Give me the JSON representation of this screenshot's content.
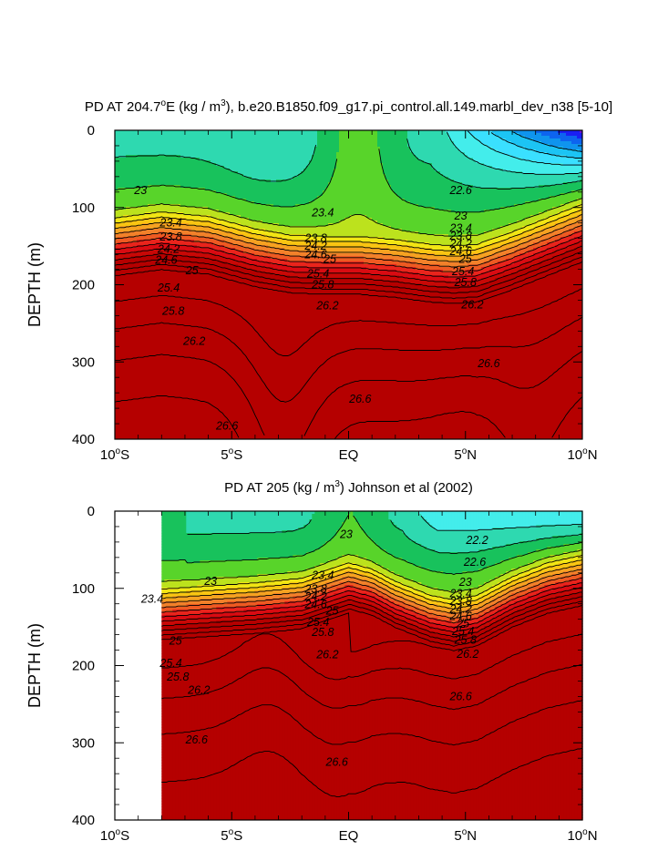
{
  "chart_data": [
    {
      "type": "contour",
      "title": "PD AT 204.7°E (kg / m³), b.e20.B1850.f09_g17.pi_control.all.149.marbl_dev_n38 [5-10]",
      "title_parts": {
        "prefix": "PD AT 204.7",
        "degree": "o",
        "mid": "E (kg / m",
        "power": "3",
        "suffix": "), b.e20.B1850.f09_g17.pi_control.all.149.marbl_dev_n38 [5-10]"
      },
      "xlabel": "",
      "ylabel": "DEPTH (m)",
      "xlim": [
        -10,
        10
      ],
      "ylim": [
        400,
        0
      ],
      "y_reversed": true,
      "x_ticks": [
        {
          "value": -10,
          "num": "10",
          "hemi": "S"
        },
        {
          "value": -5,
          "num": "5",
          "hemi": "S"
        },
        {
          "value": 0,
          "num": "EQ",
          "hemi": ""
        },
        {
          "value": 5,
          "num": "5",
          "hemi": "N"
        },
        {
          "value": 10,
          "num": "10",
          "hemi": "N"
        }
      ],
      "y_ticks": [
        "0",
        "100",
        "200",
        "300",
        "400"
      ],
      "data_xmin": -10,
      "contour_levels": [
        22.2,
        22.6,
        23.0,
        23.4,
        23.8,
        24.2,
        24.6,
        25.0,
        25.4,
        25.8,
        26.2,
        26.6
      ],
      "contour_labels": [
        {
          "x": -8.9,
          "y": 78,
          "text": "23"
        },
        {
          "x": -7.6,
          "y": 120,
          "text": "23.4"
        },
        {
          "x": -7.6,
          "y": 138,
          "text": "23.8"
        },
        {
          "x": -7.7,
          "y": 154,
          "text": "24.2"
        },
        {
          "x": -7.8,
          "y": 168,
          "text": "24.6"
        },
        {
          "x": -6.7,
          "y": 182,
          "text": "25"
        },
        {
          "x": -7.7,
          "y": 204,
          "text": "25.4"
        },
        {
          "x": -7.5,
          "y": 234,
          "text": "25.8"
        },
        {
          "x": -6.6,
          "y": 273,
          "text": "26.2"
        },
        {
          "x": -5.2,
          "y": 383,
          "text": "26.6"
        },
        {
          "x": -1.1,
          "y": 107,
          "text": "23.4"
        },
        {
          "x": -1.4,
          "y": 140,
          "text": "23.8"
        },
        {
          "x": -1.4,
          "y": 150,
          "text": "24.2"
        },
        {
          "x": -1.4,
          "y": 161,
          "text": "24.6"
        },
        {
          "x": -0.8,
          "y": 167,
          "text": "25"
        },
        {
          "x": -1.3,
          "y": 186,
          "text": "25.4"
        },
        {
          "x": -1.1,
          "y": 200,
          "text": "25.8"
        },
        {
          "x": -0.9,
          "y": 227,
          "text": "26.2"
        },
        {
          "x": 0.5,
          "y": 348,
          "text": "26.6"
        },
        {
          "x": 4.8,
          "y": 78,
          "text": "22.6"
        },
        {
          "x": 4.8,
          "y": 111,
          "text": "23"
        },
        {
          "x": 4.8,
          "y": 127,
          "text": "23.4"
        },
        {
          "x": 4.8,
          "y": 137,
          "text": "23.8"
        },
        {
          "x": 4.8,
          "y": 147,
          "text": "24.2"
        },
        {
          "x": 4.8,
          "y": 157,
          "text": "24.6"
        },
        {
          "x": 5.0,
          "y": 167,
          "text": "25"
        },
        {
          "x": 4.9,
          "y": 183,
          "text": "25.4"
        },
        {
          "x": 5.0,
          "y": 197,
          "text": "25.8"
        },
        {
          "x": 5.3,
          "y": 226,
          "text": "26.2"
        },
        {
          "x": 6.0,
          "y": 302,
          "text": "26.6"
        }
      ]
    },
    {
      "type": "contour",
      "title": "PD AT 205 (kg / m³) Johnson et al (2002)",
      "title_parts": {
        "prefix": "PD AT 205 (kg / m",
        "degree": "",
        "mid": "",
        "power": "3",
        "suffix": ") Johnson et al (2002)"
      },
      "xlabel": "",
      "ylabel": "DEPTH (m)",
      "xlim": [
        -10,
        10
      ],
      "ylim": [
        400,
        0
      ],
      "y_reversed": true,
      "x_ticks": [
        {
          "value": -10,
          "num": "10",
          "hemi": "S"
        },
        {
          "value": -5,
          "num": "5",
          "hemi": "S"
        },
        {
          "value": 0,
          "num": "EQ",
          "hemi": ""
        },
        {
          "value": 5,
          "num": "5",
          "hemi": "N"
        },
        {
          "value": 10,
          "num": "10",
          "hemi": "N"
        }
      ],
      "y_ticks": [
        "0",
        "100",
        "200",
        "300",
        "400"
      ],
      "data_xmin": -8,
      "contour_levels": [
        22.2,
        22.6,
        23.0,
        23.4,
        23.8,
        24.2,
        24.6,
        25.0,
        25.4,
        25.8,
        26.2,
        26.6
      ],
      "contour_labels": [
        {
          "x": 5.5,
          "y": 38,
          "text": "22.2"
        },
        {
          "x": 5.4,
          "y": 66,
          "text": "22.6"
        },
        {
          "x": 5.0,
          "y": 92,
          "text": "23"
        },
        {
          "x": 4.8,
          "y": 107,
          "text": "23.4"
        },
        {
          "x": 4.8,
          "y": 117,
          "text": "23.8"
        },
        {
          "x": 4.8,
          "y": 127,
          "text": "24.2"
        },
        {
          "x": 4.8,
          "y": 136,
          "text": "24.6"
        },
        {
          "x": 4.9,
          "y": 146,
          "text": "25"
        },
        {
          "x": 4.9,
          "y": 156,
          "text": "25.4"
        },
        {
          "x": 5.0,
          "y": 167,
          "text": "25.8"
        },
        {
          "x": 5.1,
          "y": 185,
          "text": "26.2"
        },
        {
          "x": 4.8,
          "y": 240,
          "text": "26.6"
        },
        {
          "x": -5.9,
          "y": 91,
          "text": "23"
        },
        {
          "x": -8.4,
          "y": 114,
          "text": "23.4"
        },
        {
          "x": -7.4,
          "y": 168,
          "text": "25"
        },
        {
          "x": -7.6,
          "y": 197,
          "text": "25.4"
        },
        {
          "x": -7.3,
          "y": 215,
          "text": "25.8"
        },
        {
          "x": -6.4,
          "y": 232,
          "text": "26.2"
        },
        {
          "x": -6.5,
          "y": 296,
          "text": "26.6"
        },
        {
          "x": -0.1,
          "y": 30,
          "text": "23"
        },
        {
          "x": -1.1,
          "y": 83,
          "text": "23.4"
        },
        {
          "x": -1.4,
          "y": 101,
          "text": "23.8"
        },
        {
          "x": -1.4,
          "y": 111,
          "text": "24.2"
        },
        {
          "x": -1.4,
          "y": 121,
          "text": "24.6"
        },
        {
          "x": -0.7,
          "y": 129,
          "text": "25"
        },
        {
          "x": -1.3,
          "y": 144,
          "text": "25.4"
        },
        {
          "x": -1.1,
          "y": 157,
          "text": "25.8"
        },
        {
          "x": -0.9,
          "y": 186,
          "text": "26.2"
        },
        {
          "x": -0.5,
          "y": 325,
          "text": "26.6"
        }
      ]
    }
  ]
}
